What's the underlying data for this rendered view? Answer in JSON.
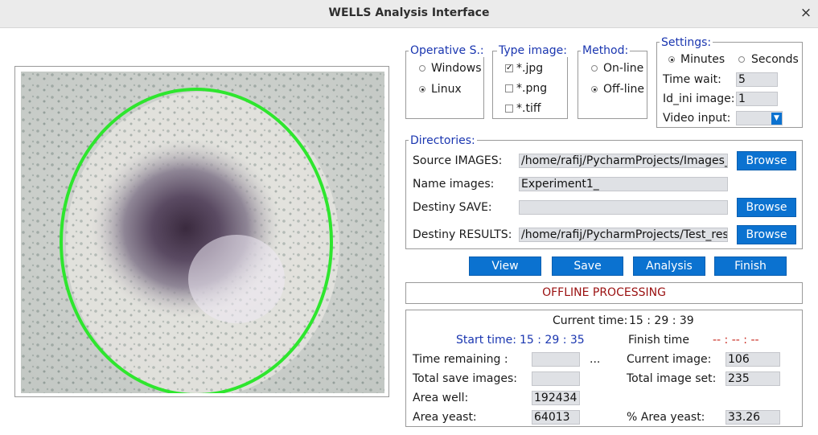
{
  "window": {
    "title": "WELLS Analysis Interface",
    "close_glyph": "×"
  },
  "image_view": {
    "alt": "Microscope image of a well with detected green ellipse contour"
  },
  "os_group": {
    "legend": "Operative S.:",
    "options": [
      {
        "label": "Windows",
        "selected": false
      },
      {
        "label": "Linux",
        "selected": true
      }
    ]
  },
  "type_group": {
    "legend": "Type image:",
    "options": [
      {
        "label": "*.jpg",
        "checked": true
      },
      {
        "label": "*.png",
        "checked": false
      },
      {
        "label": "*.tiff",
        "checked": false
      }
    ]
  },
  "method_group": {
    "legend": "Method:",
    "options": [
      {
        "label": "On-line",
        "selected": false
      },
      {
        "label": "Off-line",
        "selected": true
      }
    ]
  },
  "settings": {
    "legend": "Settings:",
    "unit_minutes": "Minutes",
    "unit_seconds": "Seconds",
    "selected_unit": "Minutes",
    "time_wait_label": "Time wait:",
    "time_wait_value": "5",
    "id_ini_label": "Id_ini image:",
    "id_ini_value": "1",
    "video_input_label": "Video input:",
    "video_input_value": ""
  },
  "directories": {
    "legend": "Directories:",
    "source_label": "Source IMAGES:",
    "source_value": "/home/rafij/PycharmProjects/Images_for_",
    "name_label": "Name images:",
    "name_value": "Experiment1_",
    "destiny_save_label": "Destiny SAVE:",
    "destiny_save_value": "",
    "destiny_results_label": "Destiny RESULTS:",
    "destiny_results_value": "/home/rafij/PycharmProjects/Test_results",
    "browse_label": "Browse"
  },
  "actions": {
    "view": "View",
    "save": "Save",
    "analysis": "Analysis",
    "finish": "Finish"
  },
  "status": {
    "text": "OFFLINE PROCESSING"
  },
  "stats": {
    "current_time_label": "Current time:",
    "current_time_value": "15 : 29 : 39",
    "start_time_label": "Start time:",
    "start_time_value": "15 : 29 : 35",
    "finish_time_label": "Finish time",
    "finish_time_value": "-- : -- : --",
    "time_remaining_label": "Time remaining :",
    "time_remaining_value": "",
    "ellipsis": "...",
    "current_image_label": "Current image:",
    "current_image_value": "106",
    "total_save_label": "Total save images:",
    "total_save_value": "",
    "total_set_label": "Total image set:",
    "total_set_value": "235",
    "area_well_label": "Area well:",
    "area_well_value": "192434",
    "area_yeast_label": "Area yeast:",
    "area_yeast_value": "64013",
    "pct_yeast_label": "% Area yeast:",
    "pct_yeast_value": "33.26"
  },
  "colors": {
    "accent": "#0b72d0",
    "legend": "#1a36b0",
    "status": "#9a1010",
    "contour": "#2ee62e"
  }
}
